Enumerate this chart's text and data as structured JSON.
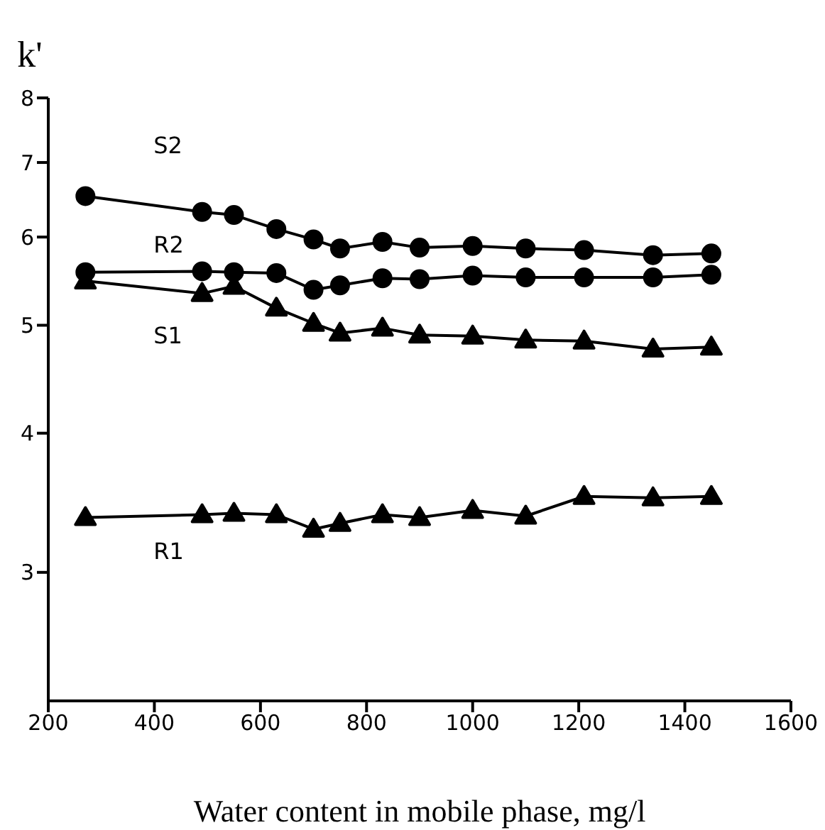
{
  "chart_data": {
    "type": "line",
    "xlabel": "Water content in mobile phase, mg/l",
    "ylabel": "k'",
    "log": "y",
    "xlim": [
      200,
      1600
    ],
    "xticks": [
      200,
      400,
      600,
      800,
      1000,
      1200,
      1400,
      1600
    ],
    "ylim": [
      2.3,
      8
    ],
    "yticks": [
      3,
      4,
      5,
      6,
      7,
      8
    ],
    "grid": false,
    "x": [
      270,
      490,
      550,
      630,
      700,
      750,
      830,
      900,
      1000,
      1100,
      1210,
      1340,
      1450
    ],
    "series": [
      {
        "name": "S2",
        "color": "#000000",
        "marker": "circle",
        "values": [
          6.53,
          6.32,
          6.28,
          6.1,
          5.97,
          5.86,
          5.94,
          5.87,
          5.89,
          5.86,
          5.84,
          5.78,
          5.8
        ]
      },
      {
        "name": "R2",
        "color": "#000000",
        "marker": "circle",
        "values": [
          5.58,
          5.59,
          5.58,
          5.57,
          5.38,
          5.43,
          5.51,
          5.5,
          5.54,
          5.52,
          5.52,
          5.52,
          5.55
        ]
      },
      {
        "name": "S1",
        "color": "#000000",
        "marker": "triangle",
        "values": [
          5.48,
          5.34,
          5.42,
          5.18,
          5.02,
          4.92,
          4.97,
          4.9,
          4.89,
          4.85,
          4.84,
          4.76,
          4.78
        ]
      },
      {
        "name": "R1",
        "color": "#000000",
        "marker": "triangle",
        "values": [
          3.36,
          3.38,
          3.39,
          3.38,
          3.28,
          3.32,
          3.38,
          3.36,
          3.41,
          3.37,
          3.51,
          3.5,
          3.51
        ]
      }
    ]
  }
}
